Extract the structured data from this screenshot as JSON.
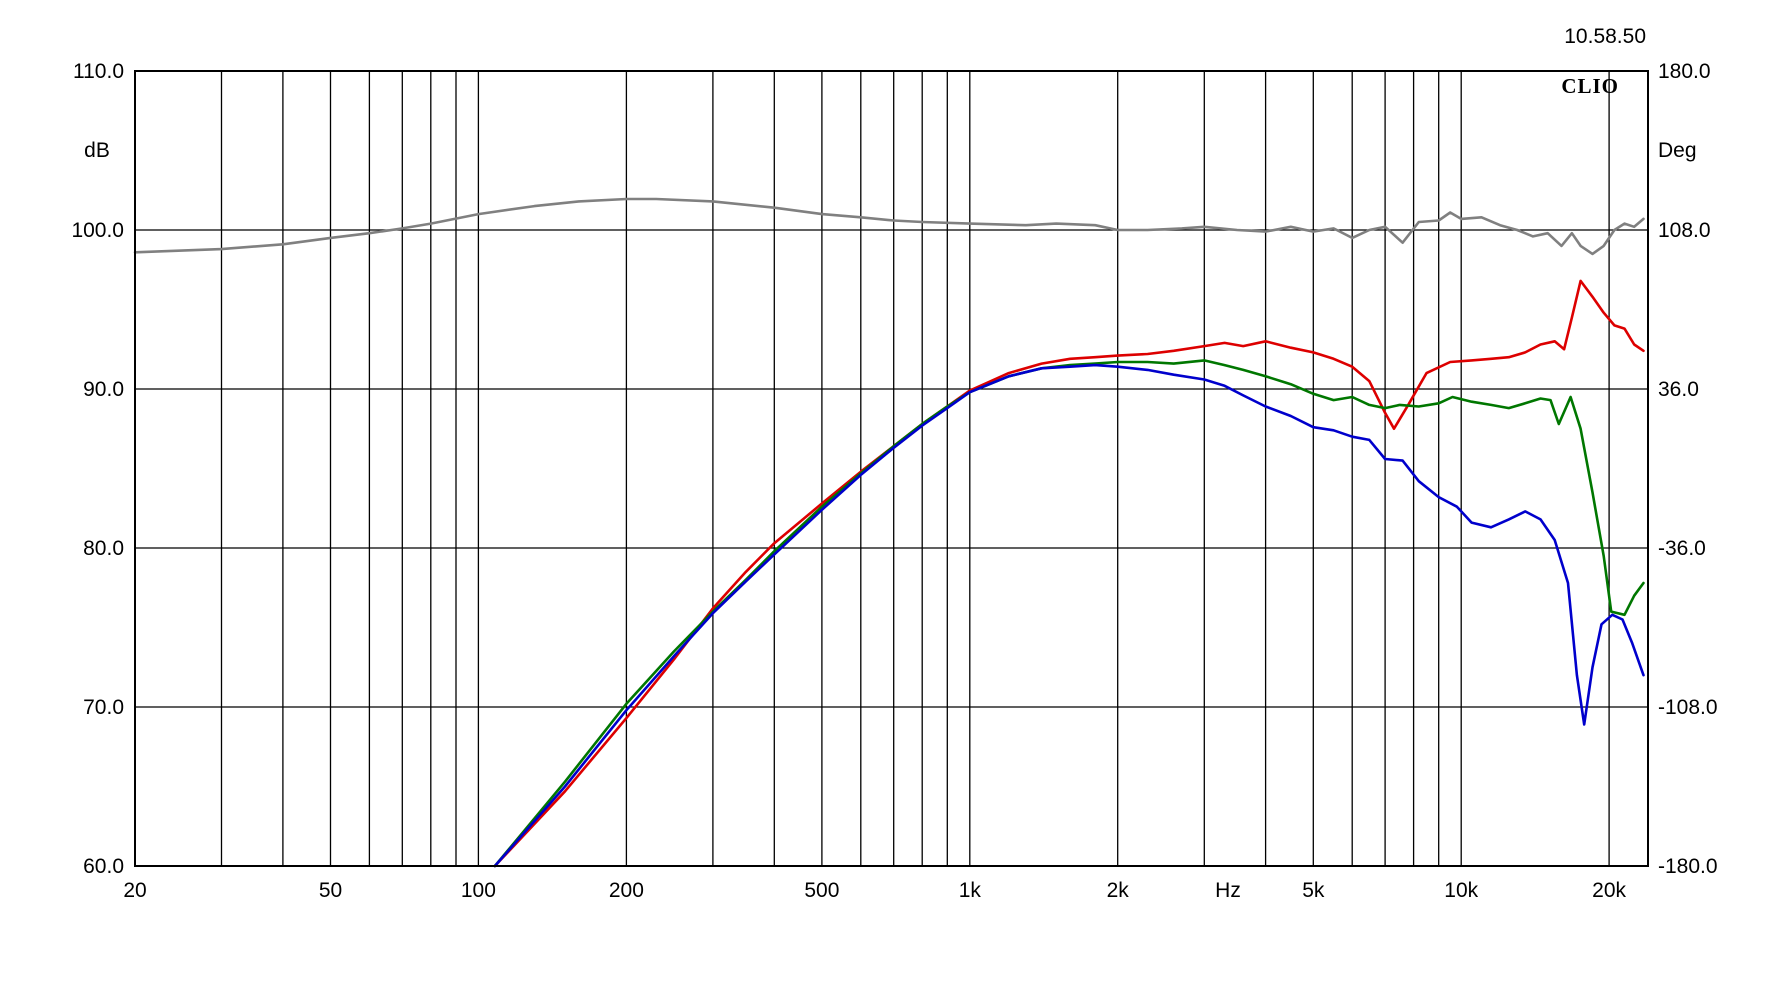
{
  "timestamp": "10.58.50",
  "brand": "CLIO",
  "chart_data": {
    "type": "line",
    "x_scale": "log",
    "xlim": [
      20,
      24000
    ],
    "ylim": [
      60,
      110
    ],
    "y2lim": [
      -180,
      180
    ],
    "grid": true,
    "xlabel": "Hz",
    "ylabel": "dB",
    "y2label": "Deg",
    "x_tick_labels": [
      {
        "value": 20,
        "label": "20"
      },
      {
        "value": 50,
        "label": "50"
      },
      {
        "value": 100,
        "label": "100"
      },
      {
        "value": 200,
        "label": "200"
      },
      {
        "value": 500,
        "label": "500"
      },
      {
        "value": 1000,
        "label": "1k"
      },
      {
        "value": 2000,
        "label": "2k"
      },
      {
        "value": 5000,
        "label": "5k"
      },
      {
        "value": 10000,
        "label": "10k"
      },
      {
        "value": 20000,
        "label": "20k"
      }
    ],
    "x_gridlines": [
      30,
      40,
      50,
      60,
      70,
      80,
      90,
      100,
      200,
      300,
      400,
      500,
      600,
      700,
      800,
      900,
      1000,
      2000,
      3000,
      4000,
      5000,
      6000,
      7000,
      8000,
      9000,
      10000,
      20000
    ],
    "y_ticks": [
      "60.0",
      "70.0",
      "80.0",
      "90.0",
      "100.0",
      "110.0"
    ],
    "y2_ticks": [
      "-180.0",
      "-108.0",
      "-36.0",
      "36.0",
      "108.0",
      "180.0"
    ],
    "series": [
      {
        "color": "#808080",
        "axis": "right",
        "points": [
          [
            20,
            98.6
          ],
          [
            30,
            98.8
          ],
          [
            40,
            99.1
          ],
          [
            50,
            99.5
          ],
          [
            60,
            99.8
          ],
          [
            70,
            100.1
          ],
          [
            80,
            100.4
          ],
          [
            100,
            101.0
          ],
          [
            130,
            101.5
          ],
          [
            160,
            101.8
          ],
          [
            200,
            101.95
          ],
          [
            230,
            101.95
          ],
          [
            300,
            101.8
          ],
          [
            400,
            101.4
          ],
          [
            500,
            101.0
          ],
          [
            600,
            100.8
          ],
          [
            700,
            100.6
          ],
          [
            800,
            100.5
          ],
          [
            1000,
            100.4
          ],
          [
            1300,
            100.3
          ],
          [
            1500,
            100.4
          ],
          [
            1800,
            100.3
          ],
          [
            2000,
            100.0
          ],
          [
            2300,
            100.0
          ],
          [
            2700,
            100.1
          ],
          [
            3000,
            100.2
          ],
          [
            3500,
            100.0
          ],
          [
            4000,
            99.9
          ],
          [
            4500,
            100.2
          ],
          [
            5000,
            99.9
          ],
          [
            5500,
            100.1
          ],
          [
            6000,
            99.5
          ],
          [
            6500,
            100.0
          ],
          [
            7000,
            100.2
          ],
          [
            7600,
            99.2
          ],
          [
            8200,
            100.5
          ],
          [
            9000,
            100.6
          ],
          [
            9500,
            101.1
          ],
          [
            10000,
            100.7
          ],
          [
            11000,
            100.8
          ],
          [
            12000,
            100.3
          ],
          [
            13000,
            100.0
          ],
          [
            14000,
            99.6
          ],
          [
            15000,
            99.8
          ],
          [
            16000,
            99.0
          ],
          [
            16800,
            99.8
          ],
          [
            17500,
            99.0
          ],
          [
            18500,
            98.5
          ],
          [
            19500,
            99.0
          ],
          [
            20500,
            100.0
          ],
          [
            21500,
            100.4
          ],
          [
            22500,
            100.2
          ],
          [
            23500,
            100.7
          ]
        ]
      },
      {
        "color": "#dd0000",
        "axis": "left",
        "points": [
          [
            108,
            60.0
          ],
          [
            150,
            64.7
          ],
          [
            200,
            69.3
          ],
          [
            250,
            73.0
          ],
          [
            300,
            76.2
          ],
          [
            350,
            78.5
          ],
          [
            400,
            80.3
          ],
          [
            500,
            82.8
          ],
          [
            600,
            84.8
          ],
          [
            700,
            86.4
          ],
          [
            800,
            87.8
          ],
          [
            900,
            88.9
          ],
          [
            1000,
            89.9
          ],
          [
            1200,
            91.0
          ],
          [
            1400,
            91.6
          ],
          [
            1600,
            91.9
          ],
          [
            1800,
            92.0
          ],
          [
            2000,
            92.1
          ],
          [
            2300,
            92.2
          ],
          [
            2600,
            92.4
          ],
          [
            3000,
            92.7
          ],
          [
            3300,
            92.9
          ],
          [
            3600,
            92.7
          ],
          [
            4000,
            93.0
          ],
          [
            4500,
            92.6
          ],
          [
            5000,
            92.3
          ],
          [
            5500,
            91.9
          ],
          [
            6000,
            91.4
          ],
          [
            6500,
            90.5
          ],
          [
            7000,
            88.5
          ],
          [
            7300,
            87.5
          ],
          [
            7800,
            89.0
          ],
          [
            8500,
            91.0
          ],
          [
            9500,
            91.7
          ],
          [
            10500,
            91.8
          ],
          [
            11500,
            91.9
          ],
          [
            12500,
            92.0
          ],
          [
            13500,
            92.3
          ],
          [
            14500,
            92.8
          ],
          [
            15500,
            93.0
          ],
          [
            16200,
            92.5
          ],
          [
            16800,
            94.5
          ],
          [
            17500,
            96.8
          ],
          [
            18500,
            95.8
          ],
          [
            19500,
            94.8
          ],
          [
            20500,
            94.0
          ],
          [
            21500,
            93.8
          ],
          [
            22500,
            92.8
          ],
          [
            23500,
            92.4
          ]
        ]
      },
      {
        "color": "#007700",
        "axis": "left",
        "points": [
          [
            108,
            60.0
          ],
          [
            150,
            65.3
          ],
          [
            200,
            70.2
          ],
          [
            250,
            73.5
          ],
          [
            300,
            76.0
          ],
          [
            350,
            78.0
          ],
          [
            400,
            79.8
          ],
          [
            500,
            82.6
          ],
          [
            600,
            84.7
          ],
          [
            700,
            86.4
          ],
          [
            800,
            87.8
          ],
          [
            900,
            88.9
          ],
          [
            1000,
            89.8
          ],
          [
            1200,
            90.8
          ],
          [
            1400,
            91.3
          ],
          [
            1600,
            91.5
          ],
          [
            1800,
            91.6
          ],
          [
            2000,
            91.7
          ],
          [
            2300,
            91.7
          ],
          [
            2600,
            91.6
          ],
          [
            3000,
            91.8
          ],
          [
            3300,
            91.5
          ],
          [
            3600,
            91.2
          ],
          [
            4000,
            90.8
          ],
          [
            4500,
            90.3
          ],
          [
            5000,
            89.7
          ],
          [
            5500,
            89.3
          ],
          [
            6000,
            89.5
          ],
          [
            6500,
            89.0
          ],
          [
            7000,
            88.8
          ],
          [
            7500,
            89.0
          ],
          [
            8200,
            88.9
          ],
          [
            9000,
            89.1
          ],
          [
            9600,
            89.5
          ],
          [
            10500,
            89.2
          ],
          [
            11500,
            89.0
          ],
          [
            12500,
            88.8
          ],
          [
            13500,
            89.1
          ],
          [
            14500,
            89.4
          ],
          [
            15200,
            89.3
          ],
          [
            15800,
            87.8
          ],
          [
            16700,
            89.5
          ],
          [
            17500,
            87.5
          ],
          [
            18500,
            83.5
          ],
          [
            19500,
            79.5
          ],
          [
            20200,
            76.0
          ],
          [
            21500,
            75.8
          ],
          [
            22500,
            77.0
          ],
          [
            23500,
            77.8
          ]
        ]
      },
      {
        "color": "#0000cc",
        "axis": "left",
        "points": [
          [
            108,
            60.0
          ],
          [
            150,
            65.0
          ],
          [
            200,
            69.8
          ],
          [
            250,
            73.2
          ],
          [
            300,
            75.9
          ],
          [
            350,
            77.9
          ],
          [
            400,
            79.6
          ],
          [
            500,
            82.4
          ],
          [
            600,
            84.6
          ],
          [
            700,
            86.3
          ],
          [
            800,
            87.7
          ],
          [
            900,
            88.8
          ],
          [
            1000,
            89.8
          ],
          [
            1200,
            90.8
          ],
          [
            1400,
            91.3
          ],
          [
            1600,
            91.4
          ],
          [
            1800,
            91.5
          ],
          [
            2000,
            91.4
          ],
          [
            2300,
            91.2
          ],
          [
            2600,
            90.9
          ],
          [
            3000,
            90.6
          ],
          [
            3300,
            90.2
          ],
          [
            3600,
            89.6
          ],
          [
            4000,
            88.9
          ],
          [
            4500,
            88.3
          ],
          [
            5000,
            87.6
          ],
          [
            5500,
            87.4
          ],
          [
            6000,
            87.0
          ],
          [
            6500,
            86.8
          ],
          [
            7000,
            85.6
          ],
          [
            7600,
            85.5
          ],
          [
            8200,
            84.2
          ],
          [
            9000,
            83.2
          ],
          [
            9800,
            82.6
          ],
          [
            10500,
            81.6
          ],
          [
            11500,
            81.3
          ],
          [
            12500,
            81.8
          ],
          [
            13500,
            82.3
          ],
          [
            14500,
            81.8
          ],
          [
            15500,
            80.5
          ],
          [
            16500,
            77.8
          ],
          [
            17200,
            72.0
          ],
          [
            17800,
            68.9
          ],
          [
            18500,
            72.5
          ],
          [
            19300,
            75.2
          ],
          [
            20300,
            75.8
          ],
          [
            21300,
            75.5
          ],
          [
            22300,
            74.0
          ],
          [
            23500,
            72.0
          ]
        ]
      }
    ]
  }
}
